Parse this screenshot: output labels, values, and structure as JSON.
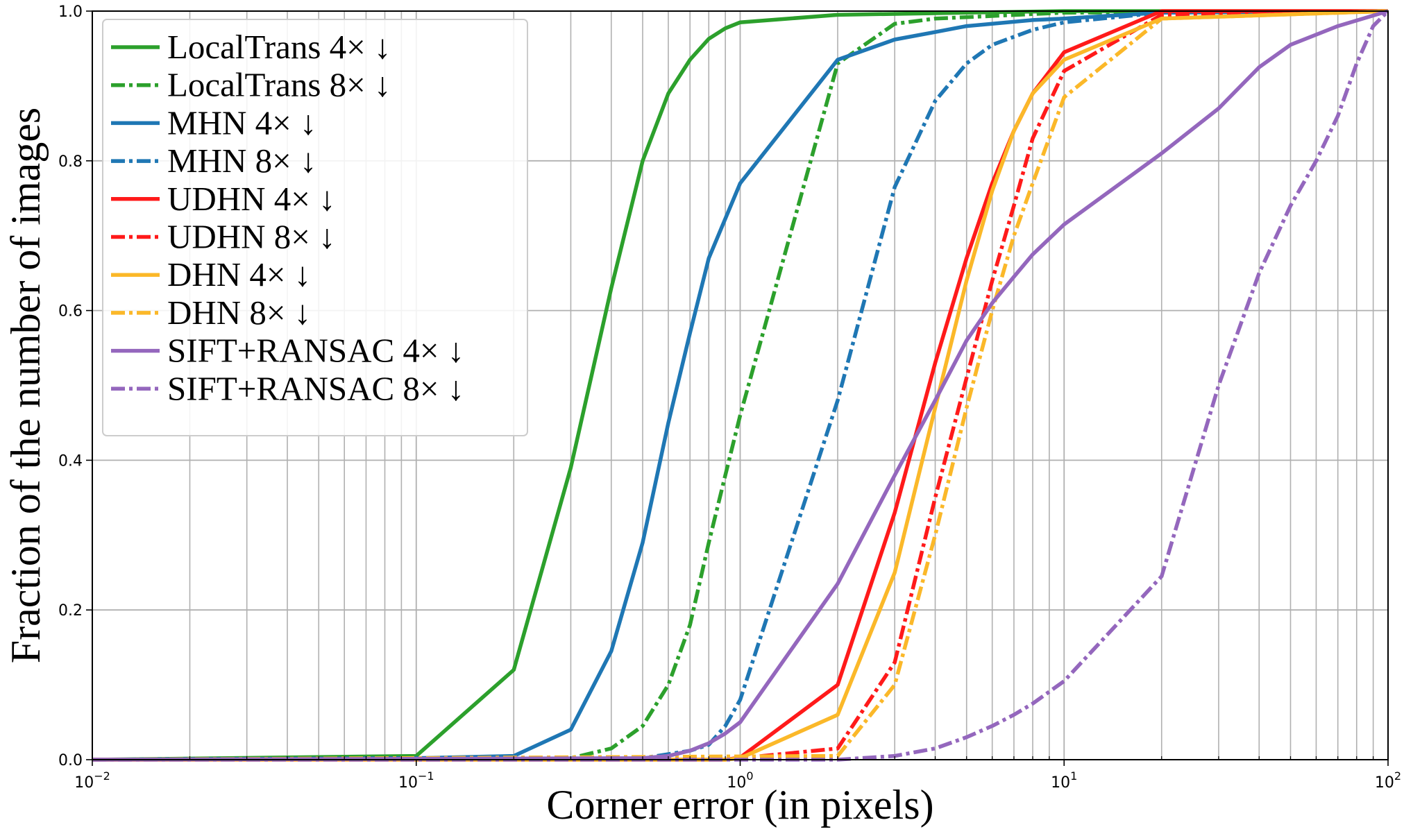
{
  "chart_data": {
    "type": "line",
    "xlabel": "Corner error (in pixels)",
    "ylabel": "Fraction of the number of images",
    "xscale": "log",
    "xlim": [
      0.01,
      100
    ],
    "ylim": [
      0.0,
      1.0
    ],
    "grid": true,
    "legend_position": "top-left",
    "x_ticks": [
      {
        "value": 0.01,
        "base": "10",
        "exp": "−2"
      },
      {
        "value": 0.1,
        "base": "10",
        "exp": "−1"
      },
      {
        "value": 1,
        "base": "10",
        "exp": "0"
      },
      {
        "value": 10,
        "base": "10",
        "exp": "1"
      },
      {
        "value": 100,
        "base": "10",
        "exp": "2"
      }
    ],
    "y_ticks": [
      {
        "value": 0.0,
        "label": "0.0"
      },
      {
        "value": 0.2,
        "label": "0.2"
      },
      {
        "value": 0.4,
        "label": "0.4"
      },
      {
        "value": 0.6,
        "label": "0.6"
      },
      {
        "value": 0.8,
        "label": "0.8"
      },
      {
        "value": 1.0,
        "label": "1.0"
      }
    ],
    "series": [
      {
        "name": "LocalTrans  4× ↓",
        "color": "#2ca02c",
        "style": "solid",
        "points": [
          [
            0.01,
            0.0
          ],
          [
            0.1,
            0.005
          ],
          [
            0.2,
            0.12
          ],
          [
            0.3,
            0.39
          ],
          [
            0.4,
            0.63
          ],
          [
            0.5,
            0.8
          ],
          [
            0.6,
            0.89
          ],
          [
            0.7,
            0.935
          ],
          [
            0.8,
            0.963
          ],
          [
            0.9,
            0.977
          ],
          [
            1,
            0.985
          ],
          [
            2,
            0.995
          ],
          [
            5,
            0.998
          ],
          [
            10,
            1.0
          ],
          [
            100,
            1.0
          ]
        ]
      },
      {
        "name": "LocalTrans  8× ↓",
        "color": "#2ca02c",
        "style": "dashdot",
        "points": [
          [
            0.01,
            0.0
          ],
          [
            0.3,
            0.002
          ],
          [
            0.4,
            0.015
          ],
          [
            0.5,
            0.045
          ],
          [
            0.6,
            0.1
          ],
          [
            0.7,
            0.18
          ],
          [
            0.8,
            0.29
          ],
          [
            0.9,
            0.38
          ],
          [
            1,
            0.46
          ],
          [
            2,
            0.93
          ],
          [
            3,
            0.983
          ],
          [
            4,
            0.99
          ],
          [
            10,
            0.998
          ],
          [
            100,
            1.0
          ]
        ]
      },
      {
        "name": "MHN  4× ↓",
        "color": "#1f77b4",
        "style": "solid",
        "points": [
          [
            0.01,
            0.0
          ],
          [
            0.1,
            0.002
          ],
          [
            0.2,
            0.005
          ],
          [
            0.3,
            0.04
          ],
          [
            0.4,
            0.145
          ],
          [
            0.5,
            0.29
          ],
          [
            0.6,
            0.45
          ],
          [
            0.7,
            0.57
          ],
          [
            0.8,
            0.67
          ],
          [
            1,
            0.77
          ],
          [
            2,
            0.935
          ],
          [
            3,
            0.962
          ],
          [
            4,
            0.972
          ],
          [
            5,
            0.98
          ],
          [
            8,
            0.988
          ],
          [
            10,
            0.99
          ],
          [
            20,
            0.998
          ],
          [
            100,
            1.0
          ]
        ]
      },
      {
        "name": "MHN  8× ↓",
        "color": "#1f77b4",
        "style": "dashdot",
        "points": [
          [
            0.01,
            0.0
          ],
          [
            0.5,
            0.002
          ],
          [
            0.7,
            0.012
          ],
          [
            0.8,
            0.02
          ],
          [
            0.9,
            0.045
          ],
          [
            1,
            0.08
          ],
          [
            2,
            0.48
          ],
          [
            3,
            0.765
          ],
          [
            4,
            0.88
          ],
          [
            5,
            0.93
          ],
          [
            6,
            0.955
          ],
          [
            8,
            0.975
          ],
          [
            10,
            0.985
          ],
          [
            20,
            0.998
          ],
          [
            100,
            1.0
          ]
        ]
      },
      {
        "name": "UDHN  4× ↓",
        "color": "#ff1a1a",
        "style": "solid",
        "points": [
          [
            0.01,
            0.0
          ],
          [
            0.9,
            0.0
          ],
          [
            1,
            0.003
          ],
          [
            2,
            0.1
          ],
          [
            3,
            0.33
          ],
          [
            4,
            0.53
          ],
          [
            5,
            0.67
          ],
          [
            6,
            0.77
          ],
          [
            7,
            0.84
          ],
          [
            8,
            0.89
          ],
          [
            10,
            0.945
          ],
          [
            20,
            1.0
          ],
          [
            100,
            1.0
          ]
        ]
      },
      {
        "name": "UDHN  8× ↓",
        "color": "#ff1a1a",
        "style": "dashdot",
        "points": [
          [
            0.01,
            0.0
          ],
          [
            1,
            0.002
          ],
          [
            2,
            0.015
          ],
          [
            3,
            0.13
          ],
          [
            4,
            0.35
          ],
          [
            5,
            0.51
          ],
          [
            6,
            0.64
          ],
          [
            7,
            0.74
          ],
          [
            8,
            0.83
          ],
          [
            10,
            0.92
          ],
          [
            20,
            0.995
          ],
          [
            100,
            1.0
          ]
        ]
      },
      {
        "name": "DHN  4× ↓",
        "color": "#fbb829",
        "style": "solid",
        "points": [
          [
            0.01,
            0.0
          ],
          [
            0.9,
            0.0
          ],
          [
            1,
            0.002
          ],
          [
            2,
            0.06
          ],
          [
            3,
            0.25
          ],
          [
            4,
            0.47
          ],
          [
            5,
            0.64
          ],
          [
            6,
            0.76
          ],
          [
            7,
            0.84
          ],
          [
            8,
            0.89
          ],
          [
            10,
            0.935
          ],
          [
            20,
            0.99
          ],
          [
            100,
            1.0
          ]
        ]
      },
      {
        "name": "DHN  8× ↓",
        "color": "#fbb829",
        "style": "dashdot",
        "points": [
          [
            0.01,
            0.0
          ],
          [
            2,
            0.005
          ],
          [
            3,
            0.1
          ],
          [
            4,
            0.3
          ],
          [
            5,
            0.47
          ],
          [
            6,
            0.6
          ],
          [
            7,
            0.7
          ],
          [
            8,
            0.77
          ],
          [
            10,
            0.885
          ],
          [
            20,
            0.99
          ],
          [
            100,
            1.0
          ]
        ]
      },
      {
        "name": "SIFT+RANSAC  4× ↓",
        "color": "#9467bd",
        "style": "solid",
        "points": [
          [
            0.01,
            0.0
          ],
          [
            0.5,
            0.002
          ],
          [
            0.6,
            0.005
          ],
          [
            0.7,
            0.012
          ],
          [
            0.8,
            0.022
          ],
          [
            0.9,
            0.035
          ],
          [
            1,
            0.05
          ],
          [
            2,
            0.235
          ],
          [
            3,
            0.38
          ],
          [
            4,
            0.48
          ],
          [
            5,
            0.56
          ],
          [
            6,
            0.61
          ],
          [
            7,
            0.645
          ],
          [
            8,
            0.675
          ],
          [
            10,
            0.715
          ],
          [
            20,
            0.81
          ],
          [
            30,
            0.87
          ],
          [
            40,
            0.925
          ],
          [
            50,
            0.955
          ],
          [
            70,
            0.98
          ],
          [
            100,
            1.0
          ]
        ]
      },
      {
        "name": "SIFT+RANSAC  8× ↓",
        "color": "#9467bd",
        "style": "dashdot",
        "points": [
          [
            0.01,
            0.0
          ],
          [
            2,
            0.0
          ],
          [
            3,
            0.005
          ],
          [
            4,
            0.015
          ],
          [
            5,
            0.03
          ],
          [
            6,
            0.045
          ],
          [
            7,
            0.06
          ],
          [
            8,
            0.075
          ],
          [
            10,
            0.105
          ],
          [
            20,
            0.245
          ],
          [
            30,
            0.5
          ],
          [
            40,
            0.65
          ],
          [
            50,
            0.74
          ],
          [
            60,
            0.8
          ],
          [
            70,
            0.86
          ],
          [
            80,
            0.93
          ],
          [
            90,
            0.98
          ],
          [
            100,
            1.0
          ]
        ]
      }
    ]
  }
}
